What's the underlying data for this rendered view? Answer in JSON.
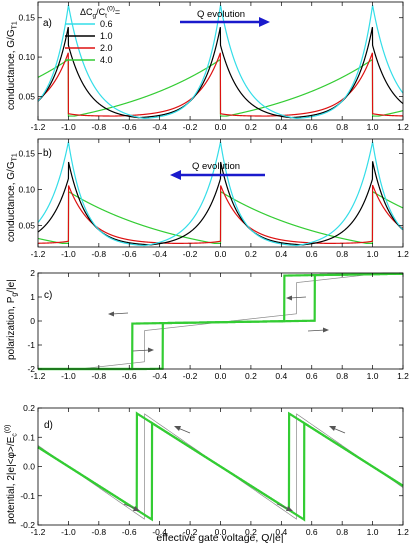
{
  "figure": {
    "xlabel": "effective gate voltage, Q/|e|",
    "x_ticks": [
      "-1.2",
      "-1.0",
      "-0.8",
      "-0.6",
      "-0.4",
      "-0.2",
      "0.0",
      "0.2",
      "0.4",
      "0.6",
      "0.8",
      "1.0",
      "1.2"
    ],
    "colors": {
      "c06": "#33dde8",
      "c10": "#000000",
      "c20": "#dd1111",
      "c40": "#33cc33",
      "arrow": "#1a1acc",
      "thin": "#888888"
    }
  },
  "chart_data": [
    {
      "type": "line",
      "panel_label": "a)",
      "ylabel": "conductance, G/G",
      "ylabel_sub": "T1",
      "xlim": [
        -1.2,
        1.2
      ],
      "ylim": [
        0.02,
        0.17
      ],
      "y_ticks": [
        "0.05",
        "0.10",
        "0.15"
      ],
      "legend": {
        "title_main": "ΔC",
        "title_sub1": "g",
        "title_mid": "/C",
        "title_sub2": "t",
        "title_sup": "(0)",
        "title_end": "=",
        "entries": [
          "0.6",
          "1.0",
          "2.0",
          "4.0"
        ]
      },
      "annotation": "Q evolution",
      "direction": "right",
      "series": [
        {
          "name": "0.6",
          "color": "c06",
          "xs": 0.0,
          "peak": 0.166,
          "min": 0.022,
          "drop": 0.166,
          "k": 0.11
        },
        {
          "name": "1.0",
          "color": "c10",
          "xs": 0.04,
          "peak": 0.139,
          "min": 0.023,
          "drop": 0.115,
          "k": 0.12
        },
        {
          "name": "2.0",
          "color": "c20",
          "xs": 0.2,
          "peak": 0.106,
          "min": 0.025,
          "drop": 0.028,
          "k": 0.15
        },
        {
          "name": "4.0",
          "color": "c40",
          "xs": 0.46,
          "peak": 0.097,
          "min": 0.025,
          "drop": 0.025,
          "k": 0.8
        }
      ]
    },
    {
      "type": "line",
      "panel_label": "b)",
      "ylabel": "conductance, G/G",
      "ylabel_sub": "T1",
      "xlim": [
        -1.2,
        1.2
      ],
      "ylim": [
        0.02,
        0.17
      ],
      "y_ticks": [
        "0.05",
        "0.10",
        "0.15"
      ],
      "annotation": "Q evolution",
      "direction": "left",
      "series": [
        {
          "name": "0.6",
          "color": "c06",
          "xs": 0.0,
          "peak": 0.166,
          "min": 0.022,
          "drop": 0.166,
          "k": 0.11
        },
        {
          "name": "1.0",
          "color": "c10",
          "xs": 0.04,
          "peak": 0.139,
          "min": 0.023,
          "drop": 0.115,
          "k": 0.12
        },
        {
          "name": "2.0",
          "color": "c20",
          "xs": 0.2,
          "peak": 0.106,
          "min": 0.025,
          "drop": 0.028,
          "k": 0.15
        },
        {
          "name": "4.0",
          "color": "c40",
          "xs": 0.46,
          "peak": 0.097,
          "min": 0.025,
          "drop": 0.025,
          "k": 0.8
        }
      ]
    },
    {
      "type": "line",
      "panel_label": "c)",
      "ylabel": "polarization, P",
      "ylabel_sub": "g",
      "ylabel_end": "/|e|",
      "xlim": [
        -1.2,
        1.2
      ],
      "ylim": [
        -2,
        2
      ],
      "y_ticks": [
        "-2",
        "-1",
        "0",
        "1",
        "2"
      ],
      "staircase": {
        "slope": 0.15,
        "hysteresis": 0.04,
        "step_up_low": -0.1,
        "step_up_high": 0.12
      }
    },
    {
      "type": "line",
      "panel_label": "d)",
      "ylabel": "potential, 2|e|<φ>/E",
      "ylabel_sub": "c",
      "ylabel_sup": "(0)",
      "xlim": [
        -1.2,
        1.2
      ],
      "ylim": [
        -0.2,
        0.2
      ],
      "y_ticks": [
        "-0.2",
        "-0.1",
        "0.0",
        "0.1",
        "0.2"
      ],
      "sawtooth": {
        "slope": 0.17,
        "hysteresis": 0.04
      }
    }
  ]
}
